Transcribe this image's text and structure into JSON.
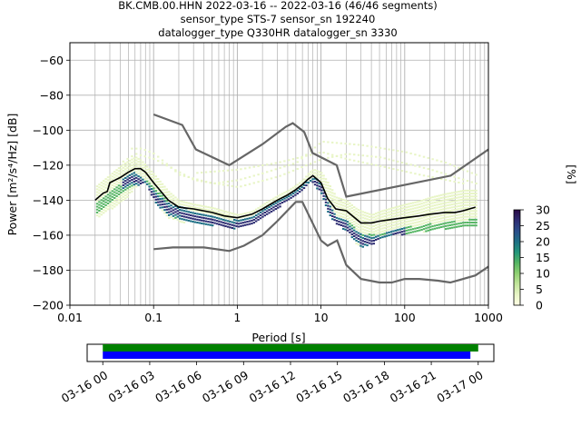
{
  "figure": {
    "title_lines": [
      "BK.CMB.00.HHN   2022-03-16 -- 2022-03-16  (46/46 segments)",
      "sensor_type STS-7 sensor_sn 192240",
      "datalogger_type Q330HR datalogger_sn 3330"
    ]
  },
  "colors": {
    "mode_line": "#000000",
    "noise_model": "#666666",
    "grid": "#b0b0b0",
    "coverage_1": "#008000",
    "coverage_2": "#0000ff",
    "colormap": [
      "#ffffe5",
      "#e8f5c6",
      "#c2e59b",
      "#8fd072",
      "#55b563",
      "#22967a",
      "#1d6f85",
      "#2a4d8a",
      "#2d2c72",
      "#2a0a45"
    ]
  },
  "chart_data": [
    {
      "type": "heatmap",
      "xlabel": "Period [s]",
      "ylabel": "Power [m²/s⁴/Hz] [dB]",
      "xscale": "log",
      "xlim": [
        0.01,
        1000
      ],
      "ylim": [
        -200,
        -50
      ],
      "x_ticks": [
        {
          "value": 0.01,
          "label": "0.01"
        },
        {
          "value": 0.1,
          "label": "0.1"
        },
        {
          "value": 1,
          "label": "1"
        },
        {
          "value": 10,
          "label": "10"
        },
        {
          "value": 100,
          "label": "100"
        },
        {
          "value": 1000,
          "label": "1000"
        }
      ],
      "y_ticks": [
        {
          "value": -60,
          "label": "−60"
        },
        {
          "value": -80,
          "label": "−80"
        },
        {
          "value": -100,
          "label": "−100"
        },
        {
          "value": -120,
          "label": "−120"
        },
        {
          "value": -140,
          "label": "−140"
        },
        {
          "value": -160,
          "label": "−160"
        },
        {
          "value": -180,
          "label": "−180"
        },
        {
          "value": -200,
          "label": "−200"
        }
      ],
      "grid": true,
      "colorbar": {
        "label": "[%]",
        "range": [
          0,
          30
        ],
        "ticks": [
          {
            "value": 0,
            "label": "0"
          },
          {
            "value": 5,
            "label": "5"
          },
          {
            "value": 10,
            "label": "10"
          },
          {
            "value": 15,
            "label": "15"
          },
          {
            "value": 20,
            "label": "20"
          },
          {
            "value": 25,
            "label": "25"
          },
          {
            "value": 30,
            "label": "30"
          }
        ]
      },
      "mode": {
        "x": [
          0.02,
          0.025,
          0.028,
          0.03,
          0.04,
          0.05,
          0.06,
          0.07,
          0.08,
          0.1,
          0.15,
          0.2,
          0.3,
          0.5,
          0.7,
          1,
          1.5,
          2,
          3,
          4,
          5,
          6,
          7,
          8,
          10,
          12,
          15,
          20,
          30,
          40,
          50,
          70,
          100,
          150,
          200,
          300,
          400,
          500,
          700
        ],
        "y": [
          -140,
          -136,
          -135,
          -130,
          -127,
          -124,
          -122,
          -122,
          -124,
          -130,
          -140,
          -144,
          -145,
          -147,
          -149,
          -150,
          -148,
          -145,
          -140,
          -137,
          -134,
          -131,
          -128,
          -126,
          -130,
          -139,
          -145,
          -146,
          -153,
          -153,
          -152,
          -151,
          -150,
          -149,
          -148,
          -147,
          -147,
          -146,
          -144
        ]
      },
      "low_noise_model": {
        "x": [
          0.1,
          0.17,
          0.4,
          0.8,
          1.2,
          2,
          3,
          5,
          6,
          10,
          12,
          15.6,
          20,
          30,
          50,
          70,
          100,
          150,
          250,
          350,
          500,
          700,
          1000
        ],
        "y": [
          -168,
          -167,
          -167,
          -169,
          -166,
          -160,
          -152,
          -141,
          -141,
          -163,
          -166,
          -163,
          -177,
          -185,
          -187,
          -187,
          -185,
          -185,
          -186,
          -187,
          -185,
          -183,
          -178
        ]
      },
      "high_noise_model": {
        "x": [
          0.1,
          0.22,
          0.32,
          0.8,
          2,
          3.8,
          4.6,
          6.3,
          7.9,
          15.4,
          20,
          354,
          1000
        ],
        "y": [
          -91,
          -97,
          -111,
          -120,
          -108,
          -98,
          -96,
          -101,
          -113,
          -120,
          -138,
          -126,
          -111
        ]
      },
      "density": {
        "main_band": {
          "x": [
            0.02,
            0.03,
            0.04,
            0.05,
            0.06,
            0.07,
            0.08,
            0.1,
            0.15,
            0.2,
            0.3,
            0.5,
            0.7,
            1,
            1.5,
            2,
            3,
            4,
            5,
            6,
            7,
            8,
            10,
            12,
            15,
            20,
            25,
            30,
            40,
            50,
            70,
            100,
            150,
            200,
            300,
            500,
            700
          ],
          "upper": [
            -132,
            -125,
            -120,
            -117,
            -115,
            -117,
            -120,
            -125,
            -135,
            -140,
            -142,
            -144,
            -146,
            -148,
            -146,
            -142,
            -137,
            -134,
            -131,
            -128,
            -124,
            -122,
            -124,
            -130,
            -138,
            -140,
            -144,
            -146,
            -148,
            -146,
            -144,
            -142,
            -140,
            -138,
            -136,
            -134,
            -134
          ],
          "lower": [
            -150,
            -145,
            -140,
            -137,
            -132,
            -130,
            -131,
            -140,
            -150,
            -152,
            -153,
            -154,
            -155,
            -156,
            -154,
            -150,
            -144,
            -140,
            -137,
            -133,
            -130,
            -130,
            -137,
            -148,
            -154,
            -157,
            -164,
            -167,
            -165,
            -162,
            -160,
            -159,
            -158,
            -157,
            -156,
            -155,
            -155
          ]
        },
        "core_band": {
          "x": [
            0.02,
            0.03,
            0.05,
            0.06,
            0.07,
            0.1,
            0.15,
            0.2,
            0.3,
            0.5,
            0.7,
            1,
            2,
            3,
            5,
            7,
            8,
            10,
            12,
            15,
            20,
            30,
            50,
            100,
            200,
            500,
            700
          ],
          "upper": [
            -141,
            -134,
            -127,
            -125,
            -126,
            -132,
            -141,
            -145,
            -147,
            -149,
            -151,
            -152,
            -146,
            -141,
            -136,
            -129,
            -128,
            -133,
            -141,
            -148,
            -151,
            -159,
            -159,
            -155,
            -153,
            -151,
            -150
          ],
          "lower": [
            -147,
            -140,
            -133,
            -131,
            -131,
            -138,
            -148,
            -151,
            -152,
            -153,
            -154,
            -155,
            -149,
            -144,
            -139,
            -131,
            -130,
            -136,
            -147,
            -153,
            -156,
            -166,
            -164,
            -159,
            -157,
            -155,
            -154
          ]
        },
        "dark_ridge": {
          "x": [
            0.04,
            0.05,
            0.06,
            0.07,
            0.1,
            0.15,
            0.3,
            0.5,
            0.7,
            1,
            1.5,
            2,
            3,
            5,
            7,
            8,
            10,
            12,
            15,
            20,
            30,
            50,
            100
          ],
          "y": [
            -130,
            -128,
            -127,
            -129,
            -138,
            -145,
            -149,
            -152,
            -154,
            -154,
            -152,
            -148,
            -143,
            -137,
            -131,
            -129,
            -134,
            -145,
            -152,
            -155,
            -163,
            -163,
            -158
          ]
        },
        "faint_curves": [
          {
            "x": [
              0.05,
              0.07,
              0.1,
              0.2,
              0.5,
              1,
              2,
              5,
              10,
              30,
              100,
              300,
              700
            ],
            "y": [
              -110,
              -110,
              -113,
              -125,
              -130,
              -128,
              -124,
              -118,
              -106,
              -108,
              -112,
              -118,
              -125
            ]
          },
          {
            "x": [
              0.04,
              0.06,
              0.1,
              0.3,
              1,
              3,
              10,
              20,
              50,
              200,
              700
            ],
            "y": [
              -118,
              -113,
              -116,
              -128,
              -132,
              -126,
              -116,
              -113,
              -115,
              -122,
              -130
            ]
          },
          {
            "x": [
              0.3,
              1,
              3,
              10,
              20,
              50,
              150,
              500
            ],
            "y": [
              -124,
              -122,
              -118,
              -112,
              -116,
              -120,
              -125,
              -130
            ]
          }
        ]
      }
    },
    {
      "type": "timeline",
      "xlim_hours": [
        -1,
        25
      ],
      "tick_labels": [
        {
          "hour": 0,
          "label": "03-16 00"
        },
        {
          "hour": 3,
          "label": "03-16 03"
        },
        {
          "hour": 6,
          "label": "03-16 06"
        },
        {
          "hour": 9,
          "label": "03-16 09"
        },
        {
          "hour": 12,
          "label": "03-16 12"
        },
        {
          "hour": 15,
          "label": "03-16 15"
        },
        {
          "hour": 18,
          "label": "03-16 18"
        },
        {
          "hour": 21,
          "label": "03-16 21"
        },
        {
          "hour": 24,
          "label": "03-17 00"
        }
      ],
      "coverage": [
        {
          "start_hour": 0,
          "end_hour": 24,
          "color_key": "coverage_1"
        },
        {
          "start_hour": 0,
          "end_hour": 23.5,
          "color_key": "coverage_2"
        }
      ]
    }
  ]
}
